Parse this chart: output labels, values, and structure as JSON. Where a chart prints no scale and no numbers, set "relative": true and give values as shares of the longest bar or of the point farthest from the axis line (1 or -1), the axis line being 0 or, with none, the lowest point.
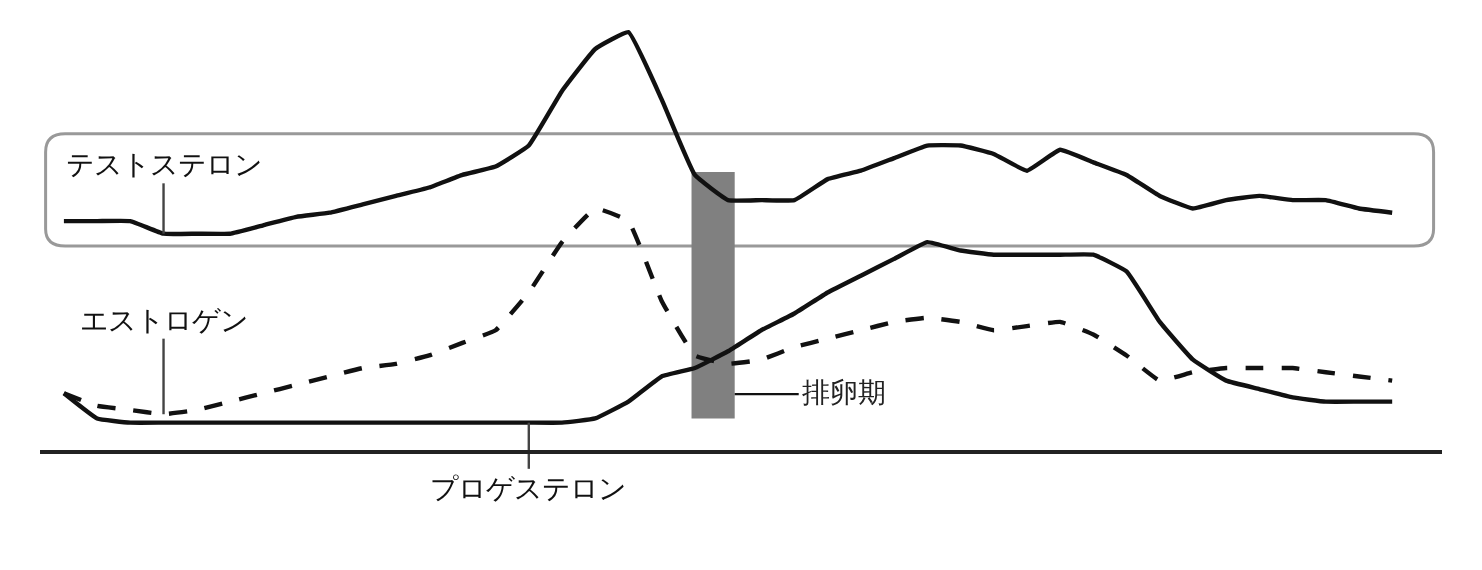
{
  "chart_data": {
    "type": "line",
    "relative": true,
    "legend": false,
    "grid": false,
    "marker": "none",
    "categories": [
      null,
      null,
      null,
      null,
      null,
      null,
      null,
      null,
      null,
      null,
      null,
      null,
      null,
      null,
      null,
      null,
      null,
      null,
      null,
      null,
      null,
      null,
      null,
      null,
      null,
      null,
      null,
      null,
      null,
      null,
      null,
      null,
      null,
      null,
      null,
      null,
      null,
      null,
      null,
      null,
      null
    ],
    "series": [
      {
        "name": "テストステロン",
        "color": "#111111",
        "line_style": "solid",
        "values": [
          0.55,
          0.55,
          0.55,
          0.52,
          0.52,
          0.52,
          0.54,
          0.56,
          0.57,
          0.59,
          0.61,
          0.63,
          0.66,
          0.68,
          0.73,
          0.86,
          0.96,
          1.0,
          0.84,
          0.66,
          0.6,
          0.6,
          0.6,
          0.65,
          0.67,
          0.7,
          0.73,
          0.73,
          0.71,
          0.67,
          0.72,
          0.69,
          0.66,
          0.61,
          0.58,
          0.6,
          0.61,
          0.6,
          0.6,
          0.58,
          0.57
        ]
      },
      {
        "name": "エストロゲン",
        "color": "#111111",
        "line_style": "dashed",
        "values": [
          0.14,
          0.11,
          0.1,
          0.09,
          0.1,
          0.12,
          0.14,
          0.16,
          0.18,
          0.2,
          0.21,
          0.23,
          0.26,
          0.29,
          0.38,
          0.5,
          0.58,
          0.55,
          0.36,
          0.23,
          0.21,
          0.22,
          0.25,
          0.27,
          0.29,
          0.31,
          0.32,
          0.31,
          0.29,
          0.3,
          0.31,
          0.28,
          0.23,
          0.17,
          0.19,
          0.2,
          0.2,
          0.2,
          0.19,
          0.18,
          0.17
        ]
      },
      {
        "name": "プロゲステロン",
        "color": "#111111",
        "line_style": "solid",
        "values": [
          0.14,
          0.08,
          0.07,
          0.07,
          0.07,
          0.07,
          0.07,
          0.07,
          0.07,
          0.07,
          0.07,
          0.07,
          0.07,
          0.07,
          0.07,
          0.07,
          0.08,
          0.12,
          0.18,
          0.2,
          0.24,
          0.29,
          0.33,
          0.38,
          0.42,
          0.46,
          0.5,
          0.48,
          0.47,
          0.47,
          0.47,
          0.47,
          0.43,
          0.31,
          0.22,
          0.17,
          0.15,
          0.13,
          0.12,
          0.12,
          0.12
        ]
      }
    ],
    "annotations": [
      "排卵期"
    ]
  }
}
